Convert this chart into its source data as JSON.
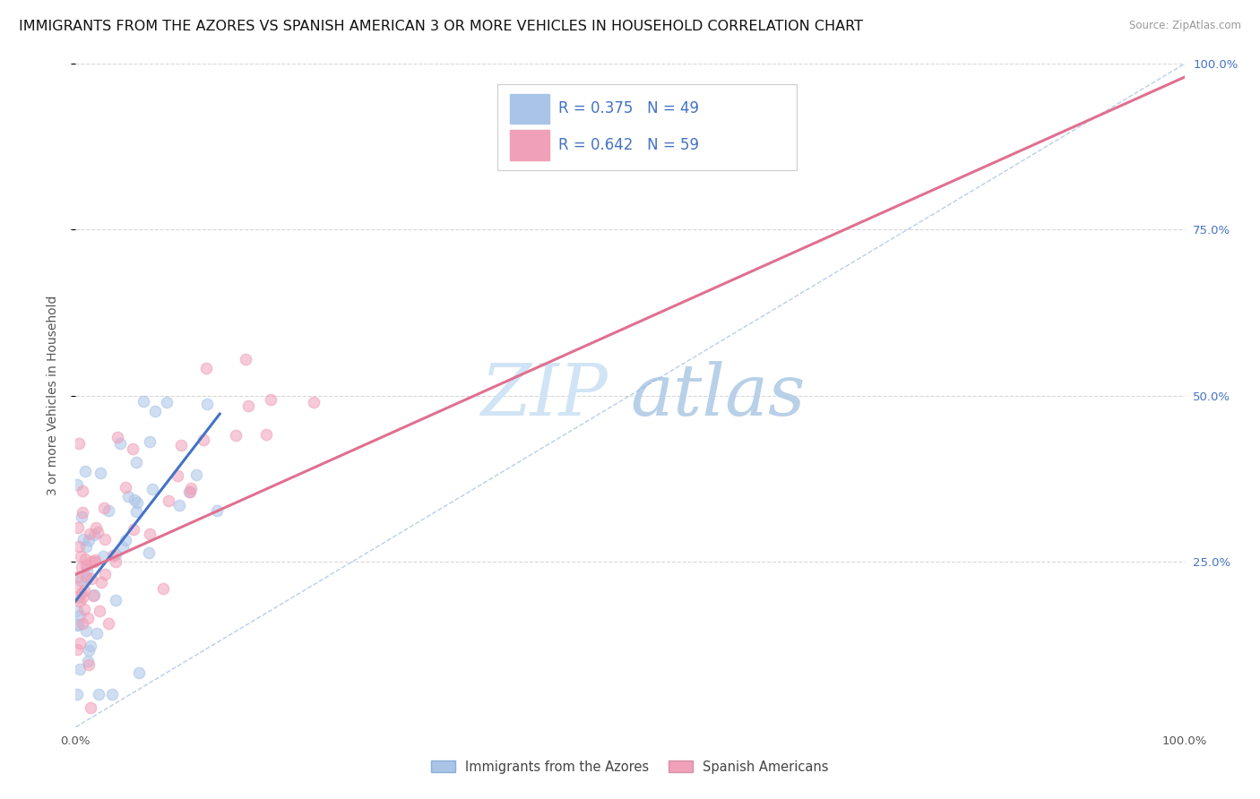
{
  "title": "IMMIGRANTS FROM THE AZORES VS SPANISH AMERICAN 3 OR MORE VEHICLES IN HOUSEHOLD CORRELATION CHART",
  "source": "Source: ZipAtlas.com",
  "ylabel": "3 or more Vehicles in Household",
  "xlim": [
    0,
    1
  ],
  "ylim": [
    0,
    1
  ],
  "blue_line_color": "#4472c4",
  "pink_line_color": "#e07090",
  "scatter_blue_color": "#aac4e8",
  "scatter_pink_color": "#f0a0b8",
  "scatter_alpha": 0.55,
  "scatter_size": 80,
  "watermark_zip": "ZIP",
  "watermark_atlas": "atlas",
  "watermark_color": "#d0e4f5",
  "background_color": "#ffffff",
  "grid_color": "#d8d8d8",
  "title_fontsize": 11.5,
  "axis_label_fontsize": 10,
  "tick_fontsize": 9.5,
  "right_tick_color": "#4472c4"
}
